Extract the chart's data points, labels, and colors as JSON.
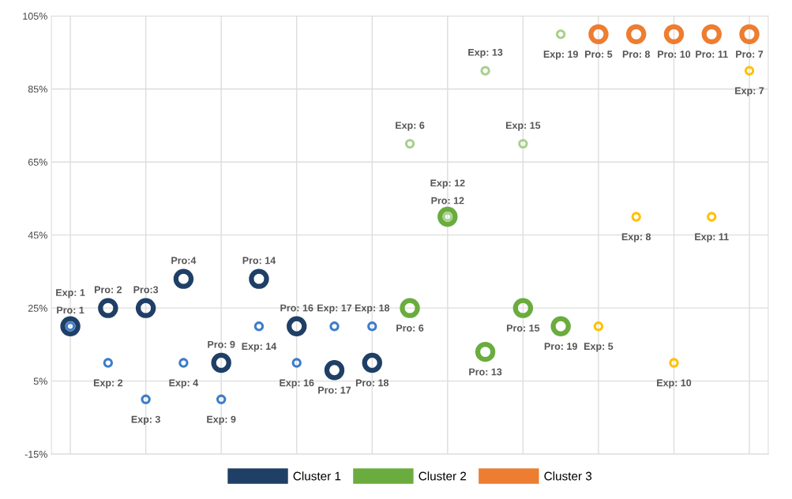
{
  "chart_data": {
    "type": "scatter",
    "categories": [
      null,
      null,
      null,
      null,
      null,
      null,
      null,
      null,
      null,
      null,
      null,
      null,
      null,
      null,
      null,
      null,
      null,
      null,
      null
    ],
    "ylim": [
      -15,
      105
    ],
    "yticks": [
      {
        "value": -15,
        "label": "-15%"
      },
      {
        "value": 5,
        "label": "5%"
      },
      {
        "value": 25,
        "label": "25%"
      },
      {
        "value": 45,
        "label": "45%"
      },
      {
        "value": 65,
        "label": "65%"
      },
      {
        "value": 85,
        "label": "85%"
      },
      {
        "value": 105,
        "label": "105%"
      }
    ],
    "tick_labels": "y",
    "grid": true,
    "legend": "bottom",
    "marker": "circle",
    "series": [
      {
        "name": "Cluster 1",
        "color": "#1f3f66",
        "values": [
          20,
          25,
          25,
          33,
          10,
          33,
          20,
          8,
          10,
          null,
          null,
          null,
          null,
          null,
          null,
          null,
          null,
          null,
          null
        ]
      },
      {
        "color": "#3d7cc9",
        "values": [
          20,
          10,
          0,
          10,
          0,
          20,
          10,
          20,
          20,
          null,
          null,
          null,
          null,
          null,
          null,
          null,
          null,
          null,
          null
        ]
      },
      {
        "name": "Cluster 2",
        "color": "#6aac3e",
        "values": [
          null,
          null,
          null,
          null,
          null,
          null,
          null,
          null,
          null,
          25,
          50,
          13,
          25,
          20,
          null,
          null,
          null,
          null,
          null
        ]
      },
      {
        "color": "#a8d08d",
        "values": [
          null,
          null,
          null,
          null,
          null,
          null,
          null,
          null,
          null,
          70,
          50,
          90,
          70,
          100,
          null,
          null,
          null,
          null,
          null
        ]
      },
      {
        "name": "Cluster 3",
        "color": "#ed7d31",
        "values": [
          null,
          null,
          null,
          null,
          null,
          null,
          null,
          null,
          null,
          null,
          null,
          null,
          null,
          null,
          100,
          100,
          100,
          100,
          100
        ]
      },
      {
        "color": "#ffc000",
        "values": [
          null,
          null,
          null,
          null,
          null,
          null,
          null,
          null,
          null,
          null,
          null,
          null,
          null,
          null,
          20,
          50,
          10,
          50,
          90
        ]
      }
    ],
    "annotations": [
      "Pro: 1",
      "Pro: 2",
      "Pro:3",
      "Pro:4",
      "Pro: 9",
      "Pro: 14",
      "Pro: 16",
      "Pro: 17",
      "Pro: 18",
      "Exp: 1",
      "Exp: 2",
      "Exp: 3",
      "Exp: 4",
      "Exp: 9",
      "Exp: 14",
      "Exp: 16",
      "Exp: 17",
      "Exp: 18",
      "Pro: 6",
      "Pro: 12",
      "Pro: 13",
      "Pro: 15",
      "Pro: 19",
      "Exp: 6",
      "Exp: 12",
      "Exp: 13",
      "Exp: 15",
      "Exp: 19",
      "Pro: 5",
      "Pro: 8",
      "Pro: 10",
      "Pro: 11",
      "Pro: 7",
      "Exp: 5",
      "Exp: 8",
      "Exp: 10",
      "Exp: 11",
      "Exp: 7"
    ]
  }
}
